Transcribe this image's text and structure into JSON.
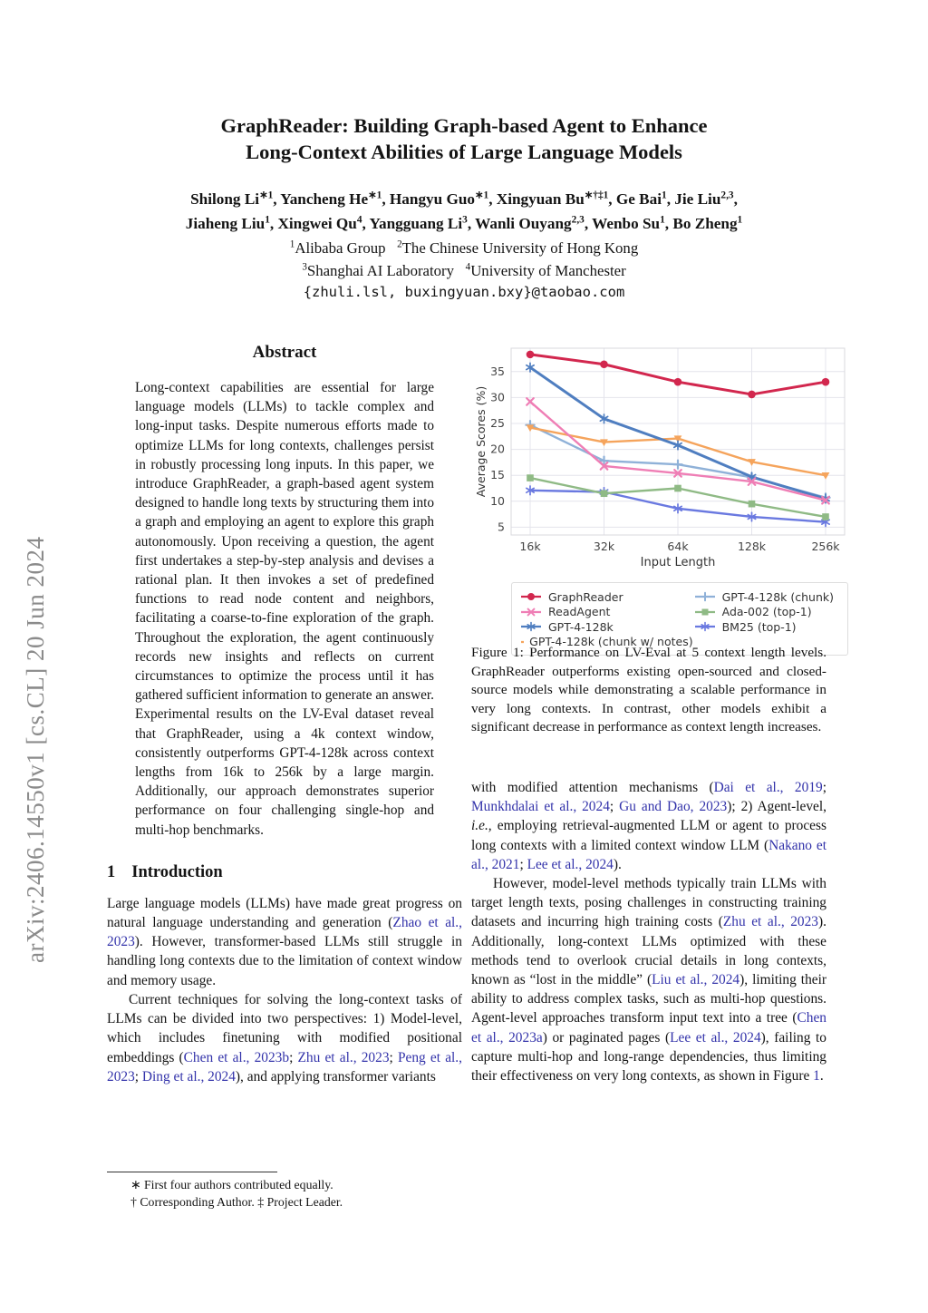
{
  "colors": {
    "citation_link": "#3333aa",
    "arxiv_banner": "#8b8b8b",
    "text": "#141414"
  },
  "arxiv_banner": "arXiv:2406.14550v1  [cs.CL]  20 Jun 2024",
  "header": {
    "title_line1": "GraphReader: Building Graph-based Agent to Enhance",
    "title_line2": "Long-Context Abilities of Large Language Models",
    "authors_line1": [
      {
        "t": "Shilong Li"
      },
      {
        "sup": "∗1"
      },
      {
        "t": ", Yancheng He"
      },
      {
        "sup": "∗1"
      },
      {
        "t": ", Hangyu Guo"
      },
      {
        "sup": "∗1"
      },
      {
        "t": ", Xingyuan Bu"
      },
      {
        "sup": "∗†‡1"
      },
      {
        "t": ", Ge Bai"
      },
      {
        "sup": "1"
      },
      {
        "t": ", Jie Liu"
      },
      {
        "sup": "2,3"
      },
      {
        "t": ","
      }
    ],
    "authors_line2": [
      {
        "t": "Jiaheng Liu"
      },
      {
        "sup": "1"
      },
      {
        "t": ", Xingwei Qu"
      },
      {
        "sup": "4"
      },
      {
        "t": ", Yangguang Li"
      },
      {
        "sup": "3"
      },
      {
        "t": ", Wanli Ouyang"
      },
      {
        "sup": "2,3"
      },
      {
        "t": ", Wenbo Su"
      },
      {
        "sup": "1"
      },
      {
        "t": ", Bo Zheng"
      },
      {
        "sup": "1"
      }
    ],
    "affiliations_line1": [
      {
        "sup": "1"
      },
      {
        "t": "Alibaba Group"
      },
      {
        "t": "   ",
        "pre": true
      },
      {
        "sup": "2"
      },
      {
        "t": "The Chinese University of Hong Kong"
      }
    ],
    "affiliations_line2": [
      {
        "sup": "3"
      },
      {
        "t": "Shanghai AI Laboratory"
      },
      {
        "t": "   ",
        "pre": true
      },
      {
        "sup": "4"
      },
      {
        "t": "University of Manchester"
      }
    ],
    "email": "{zhuli.lsl, buxingyuan.bxy}@taobao.com"
  },
  "abstract": {
    "heading": "Abstract",
    "text": "Long-context capabilities are essential for large language models (LLMs) to tackle complex and long-input tasks. Despite numerous efforts made to optimize LLMs for long contexts, challenges persist in robustly processing long inputs. In this paper, we introduce GraphReader, a graph-based agent system designed to handle long texts by structuring them into a graph and employing an agent to explore this graph autonomously. Upon receiving a question, the agent first undertakes a step-by-step analysis and devises a rational plan. It then invokes a set of predefined functions to read node content and neighbors, facilitating a coarse-to-fine exploration of the graph. Throughout the exploration, the agent continuously records new insights and reflects on current circumstances to optimize the process until it has gathered sufficient information to generate an answer. Experimental results on the LV-Eval dataset reveal that GraphReader, using a 4k context window, consistently outperforms GPT-4-128k across context lengths from 16k to 256k by a large margin. Additionally, our approach demonstrates superior performance on four challenging single-hop and multi-hop benchmarks."
  },
  "introduction": {
    "number": "1",
    "heading": "Introduction",
    "paragraphs": [
      [
        {
          "t": "Large language models (LLMs) have made great progress on natural language understanding and generation ("
        },
        {
          "t": "Zhao et al., 2023",
          "link": true
        },
        {
          "t": "). However, transformer-based LLMs still struggle in handling long contexts due to the limitation of context window and memory usage."
        }
      ],
      [
        {
          "t": "Current techniques for solving the long-context tasks of LLMs can be divided into two perspectives: 1) Model-level, which includes finetuning with modified positional embeddings ("
        },
        {
          "t": "Chen et al., 2023b",
          "link": true
        },
        {
          "t": "; "
        },
        {
          "t": "Zhu et al., 2023",
          "link": true
        },
        {
          "t": "; "
        },
        {
          "t": "Peng et al., 2023",
          "link": true
        },
        {
          "t": "; "
        },
        {
          "t": "Ding et al., 2024",
          "link": true
        },
        {
          "t": "), and applying transformer variants"
        }
      ]
    ]
  },
  "figure": {
    "caption": "Figure 1: Performance on LV-Eval at 5 context length levels. GraphReader outperforms existing open-sourced and closed-source models while demonstrating a scalable performance in very long contexts. In contrast, other models exhibit a significant decrease in performance as context length increases."
  },
  "right_column": {
    "paragraphs": [
      [
        {
          "t": "with modified attention mechanisms ("
        },
        {
          "t": "Dai et al., 2019",
          "link": true
        },
        {
          "t": "; "
        },
        {
          "t": "Munkhdalai et al., 2024",
          "link": true
        },
        {
          "t": "; "
        },
        {
          "t": "Gu and Dao, 2023",
          "link": true
        },
        {
          "t": "); 2) Agent-level, "
        },
        {
          "t": "i.e.,",
          "i": true
        },
        {
          "t": " employing retrieval-augmented LLM or agent to process long contexts with a limited context window LLM ("
        },
        {
          "t": "Nakano et al., 2021",
          "link": true
        },
        {
          "t": "; "
        },
        {
          "t": "Lee et al., 2024",
          "link": true
        },
        {
          "t": ")."
        }
      ],
      [
        {
          "t": "However, model-level methods typically train LLMs with target length texts, posing challenges in constructing training datasets and incurring high training costs ("
        },
        {
          "t": "Zhu et al., 2023",
          "link": true
        },
        {
          "t": "). Additionally, long-context LLMs optimized with these methods tend to overlook crucial details in long contexts, known as “lost in the middle” ("
        },
        {
          "t": "Liu et al., 2024",
          "link": true
        },
        {
          "t": "), limiting their ability to address complex tasks, such as multi-hop questions. Agent-level approaches transform input text into a tree ("
        },
        {
          "t": "Chen et al., 2023a",
          "link": true
        },
        {
          "t": ") or paginated pages ("
        },
        {
          "t": "Lee et al., 2024",
          "link": true
        },
        {
          "t": "), failing to capture multi-hop and long-range dependencies, thus limiting their effectiveness on very long contexts, as shown in Figure "
        },
        {
          "t": "1",
          "link": true
        },
        {
          "t": "."
        }
      ]
    ]
  },
  "footnotes": [
    "∗ First four authors contributed equally.",
    "† Corresponding Author. ‡ Project Leader."
  ],
  "chart_data": {
    "type": "line",
    "title": "",
    "xlabel": "Input Length",
    "ylabel": "Average Scores (%)",
    "categories": [
      "16k",
      "32k",
      "64k",
      "128k",
      "256k"
    ],
    "yticks": [
      5,
      10,
      15,
      20,
      25,
      30,
      35
    ],
    "ylim": [
      3.5,
      39.5
    ],
    "grid": true,
    "legend_position": "below",
    "series": [
      {
        "name": "GraphReader",
        "color": "#d2274e",
        "marker": "circle",
        "width": 3,
        "values": [
          38.3,
          36.4,
          33.0,
          30.6,
          33.0
        ]
      },
      {
        "name": "ReadAgent",
        "color": "#ef7eb5",
        "marker": "x",
        "width": 2.4,
        "values": [
          29.2,
          16.8,
          15.4,
          13.8,
          10.2
        ]
      },
      {
        "name": "GPT-4-128k",
        "color": "#4f7ec0",
        "marker": "star",
        "width": 3,
        "values": [
          35.8,
          25.9,
          20.8,
          14.7,
          10.5
        ]
      },
      {
        "name": "GPT-4-128k (chunk w/ notes)",
        "color": "#f5a45c",
        "marker": "tri-down",
        "width": 2.4,
        "values": [
          24.2,
          21.4,
          22.1,
          17.6,
          15.0
        ]
      },
      {
        "name": "GPT-4-128k (chunk)",
        "color": "#8fb1d8",
        "marker": "plus",
        "width": 2.4,
        "values": [
          24.7,
          17.8,
          17.1,
          14.6,
          10.7
        ]
      },
      {
        "name": "Ada-002 (top-1)",
        "color": "#8fba85",
        "marker": "square",
        "width": 2.4,
        "values": [
          14.5,
          11.5,
          12.5,
          9.5,
          7.0
        ]
      },
      {
        "name": "BM25 (top-1)",
        "color": "#6a79e0",
        "marker": "star",
        "width": 2.4,
        "values": [
          12.1,
          11.8,
          8.6,
          7.0,
          6.0
        ]
      }
    ],
    "style": {
      "grid_color": "#e4e4ec",
      "border_color": "#d8d8de",
      "tick_color": "#444444",
      "legend_border": "#dddddd"
    }
  }
}
